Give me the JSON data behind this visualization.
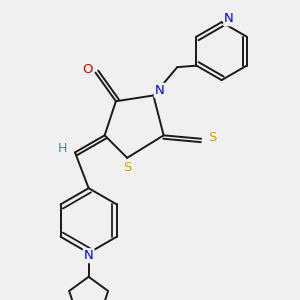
{
  "bg_color": "#f0f0f0",
  "bond_color": "#1a1a1a",
  "atom_colors": {
    "N": "#0000ee",
    "O": "#dd0000",
    "S": "#ccaa00",
    "H": "#558899",
    "C": "#1a1a1a"
  },
  "font_size": 9.5,
  "bond_width": 1.4
}
